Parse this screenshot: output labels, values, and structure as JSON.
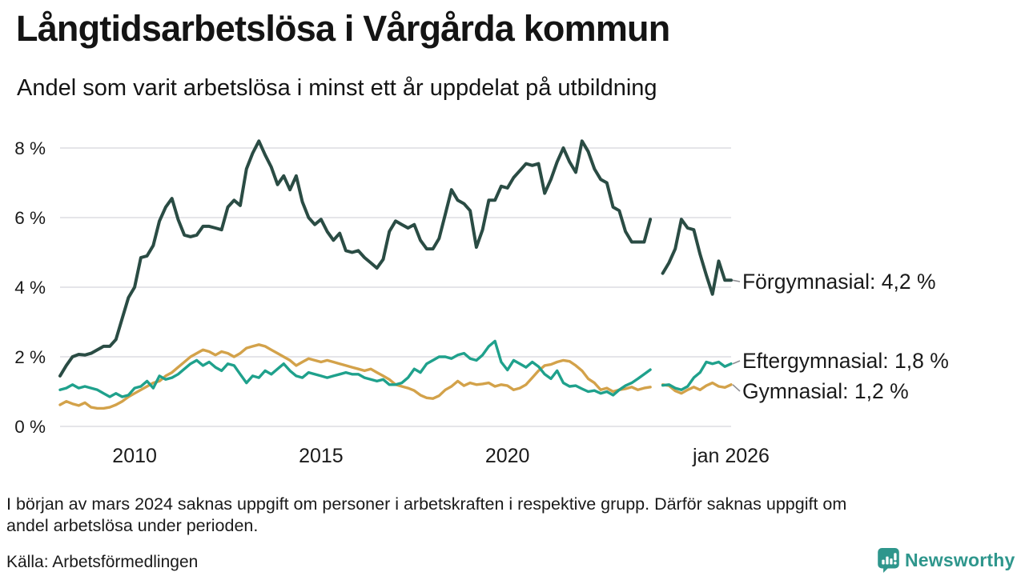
{
  "header": {
    "title": "Långtidsarbetslösa i Vårgårda kommun",
    "subtitle": "Andel som varit arbetslösa i minst ett år uppdelat på utbildning"
  },
  "chart_data": {
    "type": "line",
    "title": "Långtidsarbetslösa i Vårgårda kommun",
    "subtitle": "Andel som varit arbetslösa i minst ett år uppdelat på utbildning",
    "unit": "%",
    "xlim": [
      2008,
      2026
    ],
    "ylim": [
      0,
      8
    ],
    "x_start_year": 2008,
    "x_step_months": 2,
    "grid": true,
    "legend_position": "end-of-line-labels",
    "data_gap_period": "early 2024",
    "y_ticks": [
      {
        "value": 8,
        "label": "8 %"
      },
      {
        "value": 6,
        "label": "6 %"
      },
      {
        "value": 4,
        "label": "4 %"
      },
      {
        "value": 2,
        "label": "2 %"
      },
      {
        "value": 0,
        "label": "0 %"
      }
    ],
    "x_ticks": [
      {
        "value": 2010,
        "label": "2010"
      },
      {
        "value": 2015,
        "label": "2015"
      },
      {
        "value": 2020,
        "label": "2020"
      },
      {
        "value": 2026,
        "label": "jan 2026"
      }
    ],
    "series": [
      {
        "name": "Förgymnasial",
        "end_label": "Förgymnasial: 4,2 %",
        "latest_value": 4.2,
        "color": "#2a4c44",
        "values": [
          1.45,
          1.75,
          2.0,
          2.07,
          2.05,
          2.1,
          2.2,
          2.3,
          2.3,
          2.5,
          3.1,
          3.7,
          4.0,
          4.85,
          4.9,
          5.2,
          5.9,
          6.3,
          6.55,
          5.95,
          5.5,
          5.45,
          5.5,
          5.75,
          5.75,
          5.7,
          5.65,
          6.3,
          6.5,
          6.35,
          7.4,
          7.85,
          8.2,
          7.8,
          7.45,
          6.95,
          7.2,
          6.8,
          7.2,
          6.45,
          6.0,
          5.8,
          5.95,
          5.6,
          5.35,
          5.55,
          5.05,
          5.0,
          5.05,
          4.85,
          4.7,
          4.55,
          4.8,
          5.6,
          5.9,
          5.8,
          5.7,
          5.8,
          5.35,
          5.1,
          5.1,
          5.4,
          6.1,
          6.8,
          6.5,
          6.4,
          6.2,
          5.15,
          5.65,
          6.5,
          6.5,
          6.9,
          6.85,
          7.15,
          7.35,
          7.55,
          7.5,
          7.55,
          6.7,
          7.1,
          7.6,
          8.0,
          7.6,
          7.3,
          8.2,
          7.9,
          7.4,
          7.1,
          7.0,
          6.3,
          6.2,
          5.6,
          5.3,
          5.3,
          5.3,
          5.95,
          null,
          4.4,
          4.7,
          5.1,
          5.95,
          5.7,
          5.65,
          4.95,
          4.35,
          3.8,
          4.75,
          4.2,
          4.2
        ]
      },
      {
        "name": "Eftergymnasial",
        "end_label": "Eftergymnasial: 1,8 %",
        "latest_value": 1.8,
        "color": "#1fa18c",
        "values": [
          1.05,
          1.1,
          1.2,
          1.1,
          1.15,
          1.1,
          1.05,
          0.95,
          0.85,
          0.95,
          0.85,
          0.9,
          1.1,
          1.15,
          1.3,
          1.1,
          1.45,
          1.35,
          1.4,
          1.5,
          1.65,
          1.8,
          1.9,
          1.75,
          1.85,
          1.7,
          1.6,
          1.8,
          1.75,
          1.5,
          1.25,
          1.45,
          1.4,
          1.6,
          1.5,
          1.65,
          1.8,
          1.6,
          1.45,
          1.4,
          1.55,
          1.5,
          1.45,
          1.4,
          1.45,
          1.5,
          1.55,
          1.5,
          1.5,
          1.4,
          1.35,
          1.3,
          1.35,
          1.2,
          1.2,
          1.25,
          1.4,
          1.65,
          1.55,
          1.8,
          1.9,
          2.0,
          2.0,
          1.95,
          2.05,
          2.1,
          1.95,
          1.9,
          2.05,
          2.3,
          2.45,
          1.85,
          1.62,
          1.9,
          1.8,
          1.7,
          1.85,
          1.72,
          1.5,
          1.37,
          1.6,
          1.25,
          1.15,
          1.17,
          1.08,
          1.0,
          1.03,
          0.95,
          1.0,
          0.9,
          1.05,
          1.17,
          1.25,
          1.37,
          1.5,
          1.63,
          null,
          1.18,
          1.2,
          1.1,
          1.05,
          1.15,
          1.4,
          1.55,
          1.85,
          1.8,
          1.85,
          1.72,
          1.8
        ]
      },
      {
        "name": "Gymnasial",
        "end_label": "Gymnasial: 1,2 %",
        "latest_value": 1.2,
        "color": "#d3a24a",
        "values": [
          0.62,
          0.72,
          0.65,
          0.6,
          0.68,
          0.55,
          0.52,
          0.52,
          0.55,
          0.62,
          0.72,
          0.85,
          0.95,
          1.05,
          1.15,
          1.25,
          1.3,
          1.45,
          1.55,
          1.7,
          1.85,
          2.0,
          2.1,
          2.2,
          2.15,
          2.05,
          2.15,
          2.1,
          2.0,
          2.1,
          2.25,
          2.3,
          2.35,
          2.3,
          2.2,
          2.1,
          2.0,
          1.9,
          1.75,
          1.85,
          1.95,
          1.9,
          1.85,
          1.9,
          1.85,
          1.8,
          1.75,
          1.7,
          1.65,
          1.6,
          1.65,
          1.55,
          1.45,
          1.35,
          1.2,
          1.15,
          1.1,
          1.03,
          0.9,
          0.82,
          0.8,
          0.88,
          1.05,
          1.15,
          1.3,
          1.17,
          1.25,
          1.2,
          1.22,
          1.25,
          1.15,
          1.2,
          1.17,
          1.05,
          1.1,
          1.2,
          1.4,
          1.6,
          1.75,
          1.78,
          1.85,
          1.9,
          1.87,
          1.75,
          1.6,
          1.37,
          1.25,
          1.05,
          1.1,
          1.0,
          1.05,
          1.08,
          1.13,
          1.05,
          1.1,
          1.13,
          null,
          1.2,
          1.17,
          1.02,
          0.95,
          1.05,
          1.13,
          1.05,
          1.17,
          1.25,
          1.15,
          1.12,
          1.2
        ]
      }
    ]
  },
  "footnote": {
    "line1": "I början av mars 2024 saknas uppgift om personer i arbetskraften i respektive grupp. Därför saknas uppgift om",
    "line2": "andel arbetslösa under perioden."
  },
  "source": "Källa: Arbetsförmedlingen",
  "logo": {
    "text": "Newsworthy",
    "color": "#2e968c"
  },
  "style": {
    "gridline_color": "#e5e5e9",
    "connector_color": "#8e8e93",
    "text_color": "#1a1a1a"
  }
}
